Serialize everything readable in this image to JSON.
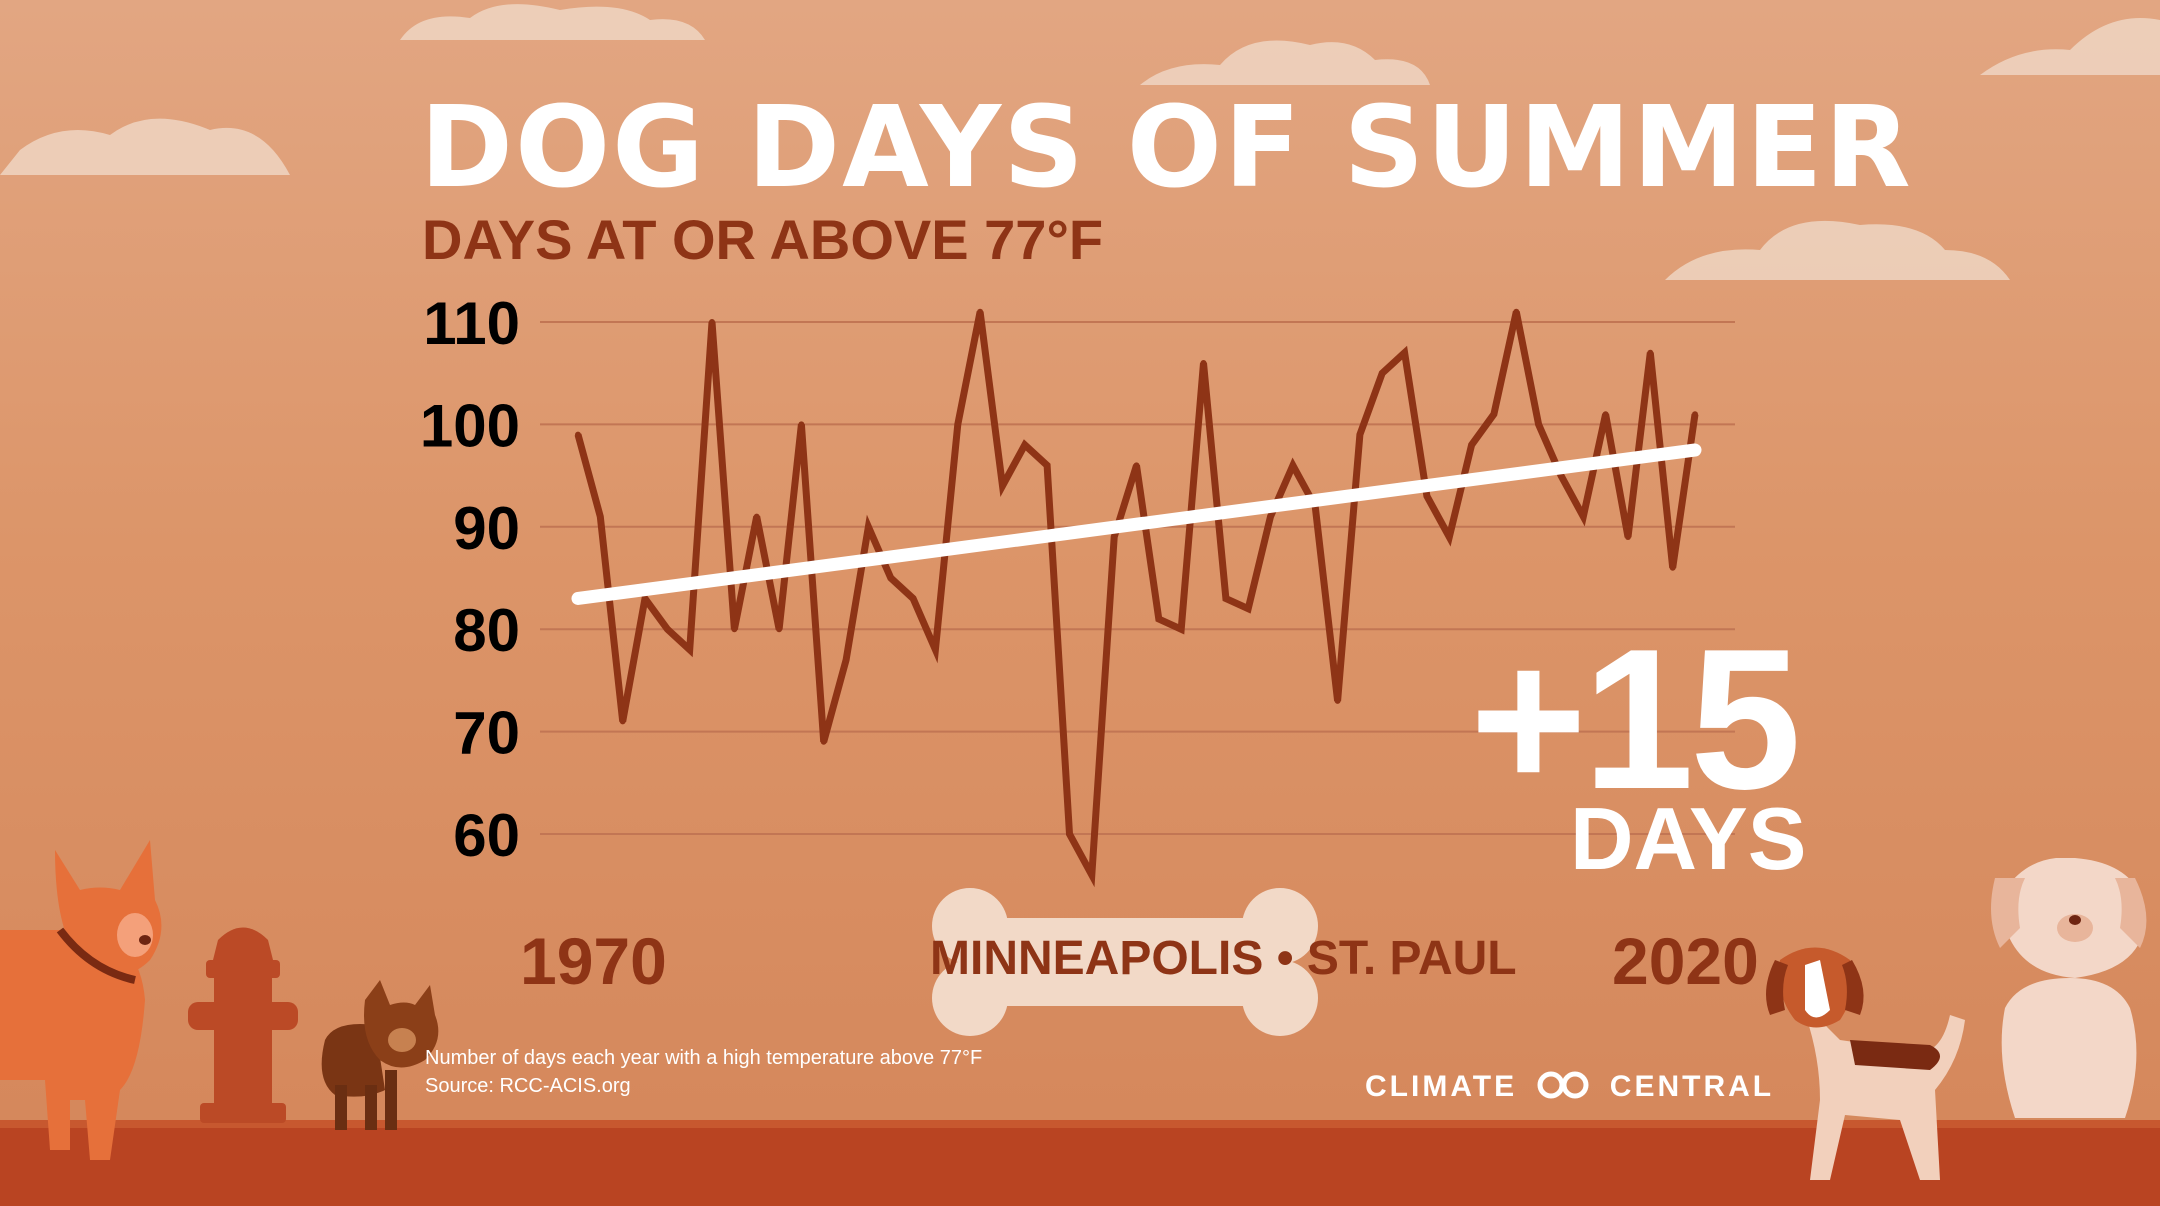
{
  "title": "DOG DAYS OF SUMMER",
  "subtitle": "DAYS AT OR ABOVE 77°F",
  "location": "MINNEAPOLIS • ST. PAUL",
  "change": {
    "value": "+15",
    "unit": "DAYS"
  },
  "footnote": {
    "description": "Number of days each year with a high temperature above 77°F",
    "source": "Source: RCC-ACIS.org"
  },
  "brand": {
    "left": "CLIMATE",
    "right": "CENTRAL"
  },
  "colors": {
    "line": "#8e3416",
    "trend": "#ffffff",
    "background": "#dc9569",
    "ground": "#b94422"
  },
  "chart_data": {
    "type": "line",
    "x": [
      1970,
      1971,
      1972,
      1973,
      1974,
      1975,
      1976,
      1977,
      1978,
      1979,
      1980,
      1981,
      1982,
      1983,
      1984,
      1985,
      1986,
      1987,
      1988,
      1989,
      1990,
      1991,
      1992,
      1993,
      1994,
      1995,
      1996,
      1997,
      1998,
      1999,
      2000,
      2001,
      2002,
      2003,
      2004,
      2005,
      2006,
      2007,
      2008,
      2009,
      2010,
      2011,
      2012,
      2013,
      2014,
      2015,
      2016,
      2017,
      2018,
      2019,
      2020
    ],
    "series": [
      {
        "values": [
          99,
          91,
          71,
          83,
          80,
          78,
          110,
          80,
          91,
          80,
          100,
          69,
          77,
          90,
          85,
          83,
          78,
          100,
          111,
          94,
          98,
          96,
          60,
          56,
          89,
          96,
          81,
          80,
          106,
          83,
          82,
          91,
          96,
          92,
          73,
          99,
          105,
          107,
          93,
          89,
          98,
          101,
          111,
          100,
          95,
          91,
          101,
          89,
          107,
          86,
          101
        ]
      },
      {
        "type": "trend",
        "values_at_ends": [
          83,
          97.5
        ]
      }
    ],
    "ylim": [
      55,
      113
    ],
    "yticks": [
      110,
      100,
      90,
      80,
      70,
      60
    ],
    "xticks": [
      "1970",
      "2020"
    ],
    "grid": true
  }
}
